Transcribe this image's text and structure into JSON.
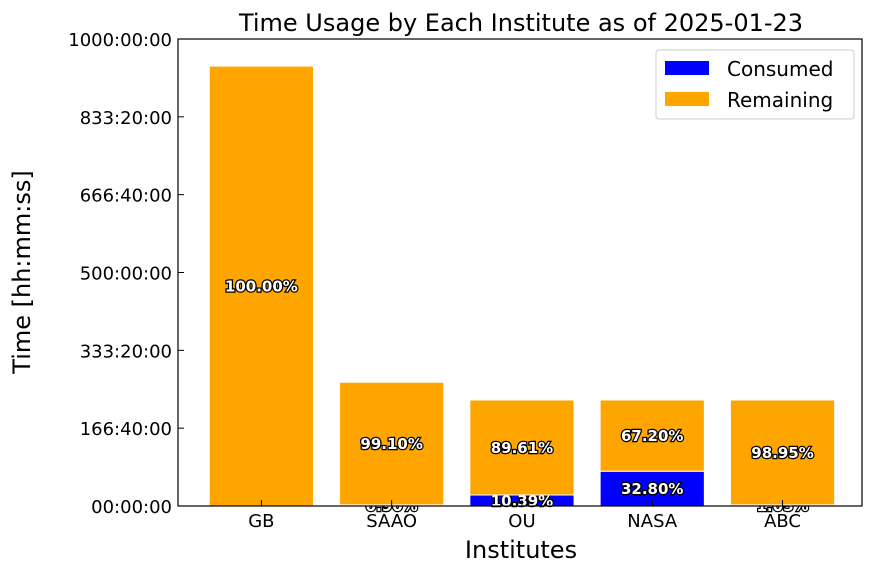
{
  "chart_data": {
    "type": "bar",
    "stacked": true,
    "title": "Time Usage by Each Institute as of 2025-01-23",
    "xlabel": "Institutes",
    "ylabel": "Time [hh:mm:ss]",
    "y_unit": "hours",
    "ylim": [
      0,
      1000
    ],
    "yticks": [
      0,
      166.667,
      333.333,
      500,
      666.667,
      833.333,
      1000
    ],
    "ytick_labels": [
      "00:00:00",
      "166:40:00",
      "333:20:00",
      "500:00:00",
      "666:40:00",
      "833:20:00",
      "1000:00:00"
    ],
    "categories": [
      "GB",
      "SAAO",
      "OU",
      "NASA",
      "ABC"
    ],
    "series": [
      {
        "name": "Consumed",
        "color": "#0000ff",
        "values": [
          0,
          2.4,
          23.6,
          74.5,
          2.4
        ],
        "labels": [
          "",
          "0.90%",
          "10.39%",
          "32.80%",
          "1.05%"
        ]
      },
      {
        "name": "Remaining",
        "color": "#ffa500",
        "values": [
          942,
          262.6,
          203.4,
          152.5,
          224.6
        ],
        "labels": [
          "100.00%",
          "99.10%",
          "89.61%",
          "67.20%",
          "98.95%"
        ]
      }
    ],
    "legend_position": "top-right",
    "grid": false
  }
}
